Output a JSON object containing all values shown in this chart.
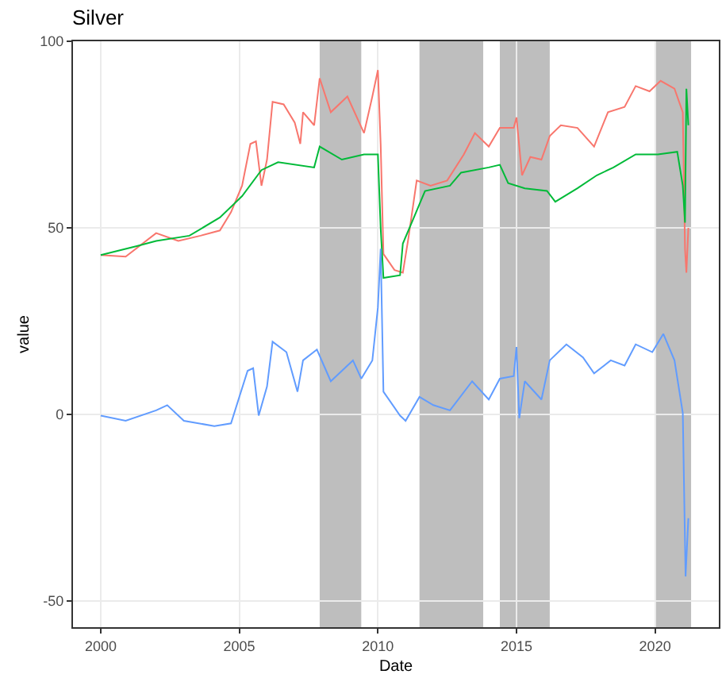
{
  "chart_data": {
    "type": "line",
    "title": "Silver",
    "xlabel": "Date",
    "ylabel": "value",
    "xlim": [
      1999,
      2022.3
    ],
    "xticks": [
      2000,
      2005,
      2010,
      2015,
      2020
    ],
    "ylim": [
      -57,
      100
    ],
    "yticks": [
      -50,
      0,
      50,
      100
    ],
    "grid": true,
    "bands": [
      {
        "axis": "x",
        "from": 2007.9,
        "to": 2009.4,
        "color": "#bebebe"
      },
      {
        "axis": "x",
        "from": 2011.5,
        "to": 2013.8,
        "color": "#bebebe"
      },
      {
        "axis": "x",
        "from": 2014.4,
        "to": 2016.2,
        "color": "#bebebe"
      },
      {
        "axis": "x",
        "from": 2020.0,
        "to": 2021.3,
        "color": "#bebebe"
      }
    ],
    "series": [
      {
        "color": "#f8766d",
        "x": [
          2000,
          2000.9,
          2002.0,
          2002.8,
          2003.6,
          2004.3,
          2004.7,
          2005.1,
          2005.4,
          2005.6,
          2005.8,
          2006.0,
          2006.2,
          2006.6,
          2007.0,
          2007.2,
          2007.3,
          2007.7,
          2007.9,
          2008.3,
          2008.9,
          2009.5,
          2009.8,
          2010.0,
          2010.1,
          2010.2,
          2010.6,
          2010.9,
          2011.1,
          2011.4,
          2011.9,
          2012.5,
          2013.1,
          2013.5,
          2014.0,
          2014.4,
          2014.9,
          2015.0,
          2015.2,
          2015.5,
          2015.9,
          2016.2,
          2016.6,
          2017.2,
          2017.8,
          2018.3,
          2018.9,
          2019.3,
          2019.8,
          2020.2,
          2020.7,
          2021.0,
          2021.08,
          2021.13,
          2021.2
        ],
        "values": [
          42.7,
          42.3,
          48.6,
          46.5,
          47.9,
          49.3,
          54.2,
          61.3,
          72.5,
          73.2,
          61.3,
          68.3,
          83.8,
          83.1,
          78.2,
          72.5,
          81.0,
          77.5,
          90.1,
          81.0,
          85.2,
          75.4,
          85.2,
          92.3,
          72.5,
          43.0,
          38.7,
          38.0,
          47.2,
          62.7,
          61.3,
          62.7,
          69.7,
          75.4,
          71.8,
          76.8,
          76.8,
          79.6,
          64.1,
          69.0,
          68.3,
          74.6,
          77.5,
          76.8,
          71.8,
          81.0,
          82.4,
          88.0,
          86.6,
          89.4,
          87.3,
          81.0,
          44.4,
          38.0,
          50.0
        ]
      },
      {
        "color": "#00ba38",
        "x": [
          2000,
          2001.3,
          2002.0,
          2003.2,
          2004.3,
          2005.1,
          2005.8,
          2006.4,
          2007.7,
          2007.9,
          2008.7,
          2009.5,
          2010.0,
          2010.1,
          2010.2,
          2010.8,
          2010.9,
          2011.3,
          2011.7,
          2012.6,
          2013.0,
          2014.0,
          2014.4,
          2014.7,
          2015.3,
          2016.1,
          2016.4,
          2017.2,
          2017.9,
          2018.5,
          2019.3,
          2020.1,
          2020.8,
          2021.0,
          2021.08,
          2021.13,
          2021.2
        ],
        "values": [
          42.7,
          45.1,
          46.5,
          47.9,
          52.8,
          58.5,
          65.5,
          67.6,
          66.2,
          71.8,
          68.3,
          69.7,
          69.7,
          50.0,
          36.6,
          37.3,
          45.8,
          52.8,
          59.9,
          61.3,
          64.8,
          66.2,
          66.9,
          62.0,
          60.6,
          59.9,
          57.0,
          60.6,
          64.1,
          66.2,
          69.7,
          69.7,
          70.4,
          61.3,
          51.4,
          87.3,
          77.5
        ]
      },
      {
        "color": "#619cff",
        "x": [
          2000,
          2000.9,
          2002.0,
          2002.4,
          2003.0,
          2004.1,
          2004.7,
          2005.0,
          2005.3,
          2005.5,
          2005.7,
          2006.0,
          2006.2,
          2006.7,
          2007.1,
          2007.3,
          2007.8,
          2008.3,
          2009.1,
          2009.4,
          2009.8,
          2010.0,
          2010.1,
          2010.2,
          2010.8,
          2011.0,
          2011.5,
          2012.0,
          2012.6,
          2013.4,
          2014.0,
          2014.4,
          2014.9,
          2015.0,
          2015.1,
          2015.3,
          2015.9,
          2016.2,
          2016.8,
          2017.4,
          2017.8,
          2018.4,
          2018.9,
          2019.3,
          2019.9,
          2020.3,
          2020.7,
          2021.0,
          2021.1,
          2021.2
        ],
        "values": [
          -0.3,
          -1.7,
          1.1,
          2.5,
          -1.7,
          -3.1,
          -2.4,
          4.7,
          11.7,
          12.4,
          -0.3,
          7.5,
          19.5,
          16.7,
          6.1,
          14.5,
          17.4,
          8.9,
          14.5,
          9.6,
          14.5,
          28.7,
          44.4,
          6.1,
          -0.3,
          -1.7,
          4.7,
          2.5,
          1.1,
          8.9,
          4.0,
          9.6,
          10.3,
          18.1,
          -1.0,
          8.9,
          4.0,
          14.5,
          18.8,
          15.3,
          11.0,
          14.5,
          13.1,
          18.8,
          16.7,
          21.6,
          14.5,
          0.4,
          -43.4,
          -27.8
        ]
      }
    ]
  }
}
